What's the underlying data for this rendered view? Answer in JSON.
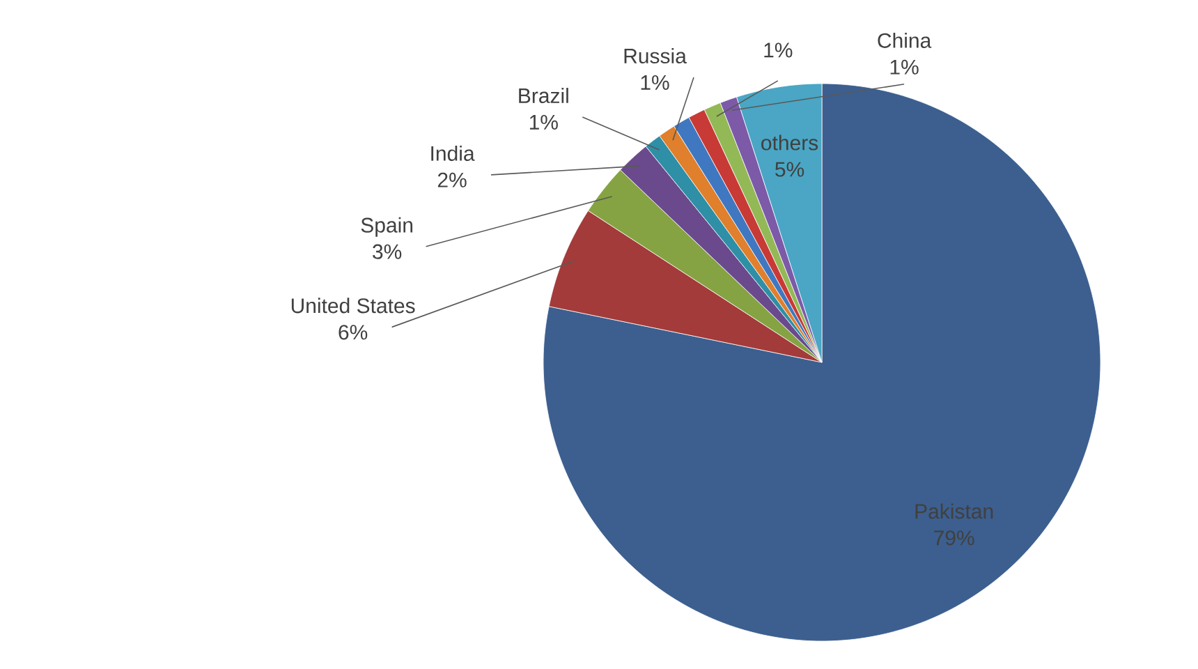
{
  "chart_data": {
    "type": "pie",
    "categories": [
      "Pakistan",
      "United States",
      "Spain",
      "India",
      "Brazil",
      "Russia",
      null,
      null,
      null,
      "China",
      "others"
    ],
    "values": [
      79,
      6,
      3,
      2,
      1,
      1,
      1,
      1,
      1,
      1,
      5
    ],
    "value_labels": [
      "79%",
      "6%",
      "3%",
      "2%",
      "1%",
      "1%",
      null,
      null,
      "1%",
      "1%",
      "5%"
    ],
    "colors": [
      "#3c5f8f",
      "#a33b3a",
      "#86a343",
      "#6a4a8c",
      "#2e8fa6",
      "#e07f2c",
      "#3f78c0",
      "#c83a36",
      "#93b957",
      "#7c5aa8",
      "#4aa6c4"
    ]
  }
}
